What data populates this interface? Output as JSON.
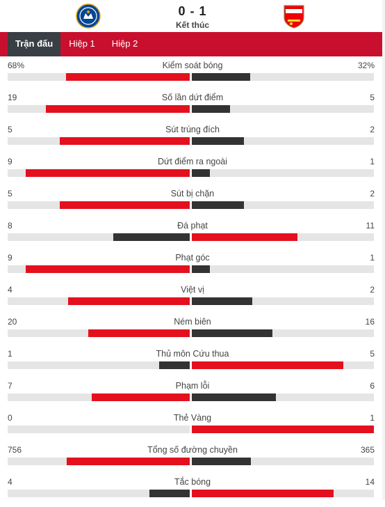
{
  "match": {
    "score": "0 - 1",
    "status": "Kết thúc",
    "home_crest_icon": "chelsea-crest-icon",
    "away_crest_icon": "arsenal-crest-icon"
  },
  "tabs": [
    {
      "label": "Trận đấu",
      "active": true
    },
    {
      "label": "Hiệp 1",
      "active": false
    },
    {
      "label": "Hiệp 2",
      "active": false
    }
  ],
  "colors": {
    "accent_red": "#c8102e",
    "bar_red": "#e4101e",
    "bar_dark": "#333333",
    "track": "#e5e5e5",
    "tab_active": "#3a3f45"
  },
  "stats": [
    {
      "name": "Kiểm soát bóng",
      "home": "68%",
      "away": "32%",
      "home_val": 68,
      "away_val": 32
    },
    {
      "name": "Số lần dứt điểm",
      "home": "19",
      "away": "5",
      "home_val": 19,
      "away_val": 5
    },
    {
      "name": "Sút trúng đích",
      "home": "5",
      "away": "2",
      "home_val": 5,
      "away_val": 2
    },
    {
      "name": "Dứt điểm ra ngoài",
      "home": "9",
      "away": "1",
      "home_val": 9,
      "away_val": 1
    },
    {
      "name": "Sút bị chặn",
      "home": "5",
      "away": "2",
      "home_val": 5,
      "away_val": 2
    },
    {
      "name": "Đá phạt",
      "home": "8",
      "away": "11",
      "home_val": 8,
      "away_val": 11
    },
    {
      "name": "Phạt góc",
      "home": "9",
      "away": "1",
      "home_val": 9,
      "away_val": 1
    },
    {
      "name": "Việt vị",
      "home": "4",
      "away": "2",
      "home_val": 4,
      "away_val": 2
    },
    {
      "name": "Ném biên",
      "home": "20",
      "away": "16",
      "home_val": 20,
      "away_val": 16
    },
    {
      "name": "Thủ môn Cứu thua",
      "home": "1",
      "away": "5",
      "home_val": 1,
      "away_val": 5
    },
    {
      "name": "Phạm lỗi",
      "home": "7",
      "away": "6",
      "home_val": 7,
      "away_val": 6
    },
    {
      "name": "Thẻ Vàng",
      "home": "0",
      "away": "1",
      "home_val": 0,
      "away_val": 1
    },
    {
      "name": "Tổng số đường chuyền",
      "home": "756",
      "away": "365",
      "home_val": 756,
      "away_val": 365
    },
    {
      "name": "Tắc bóng",
      "home": "4",
      "away": "14",
      "home_val": 4,
      "away_val": 14
    }
  ]
}
